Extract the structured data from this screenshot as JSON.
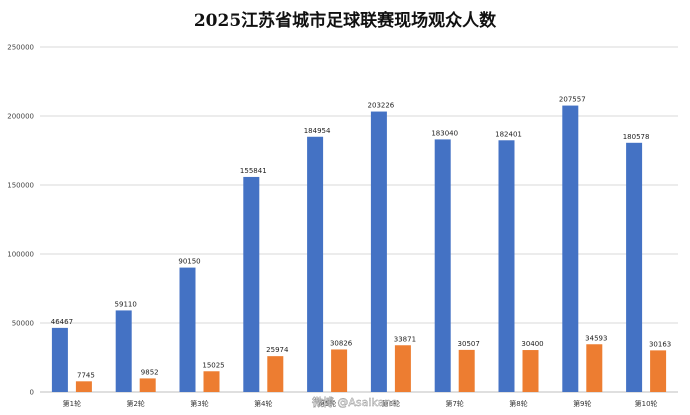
{
  "chart_data": {
    "type": "bar",
    "title": "2025江苏省城市足球联赛现场观众人数",
    "xlabel": "",
    "ylabel": "",
    "ylim": [
      0,
      250000
    ],
    "yticks": [
      0,
      50000,
      100000,
      150000,
      200000,
      250000
    ],
    "yticks_labels": [
      "0",
      "50000",
      "100000",
      "150000",
      "200000",
      "250000"
    ],
    "grid": true,
    "legend": "none",
    "categories": [
      "第1轮",
      "第2轮",
      "第3轮",
      "第4轮",
      "第5轮",
      "第6轮",
      "第7轮",
      "第8轮",
      "第9轮",
      "第10轮"
    ],
    "series": [
      {
        "values": [
          46467,
          59110,
          90150,
          155841,
          184954,
          203226,
          183040,
          182401,
          207557,
          180578
        ],
        "color": "#4472c4"
      },
      {
        "values": [
          7745,
          9852,
          15025,
          25974,
          30826,
          33871,
          30507,
          30400,
          34593,
          30163
        ],
        "color": "#ed7d31"
      }
    ]
  },
  "watermark": "微博 @Asaikana"
}
